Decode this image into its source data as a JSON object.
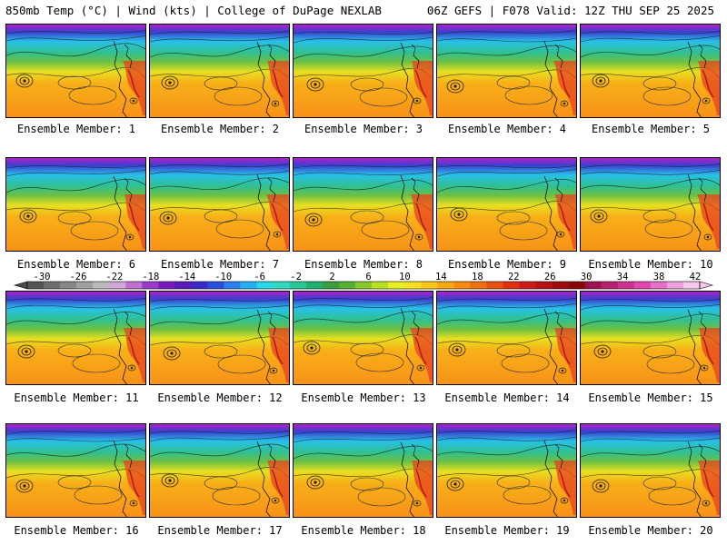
{
  "header": {
    "left": "850mb Temp (°C) | Wind (kts) | College of DuPage NEXLAB",
    "right": "06Z GEFS | F078 Valid: 12Z THU SEP 25 2025"
  },
  "panels": [
    {
      "label": "Ensemble Member: 1"
    },
    {
      "label": "Ensemble Member: 2"
    },
    {
      "label": "Ensemble Member: 3"
    },
    {
      "label": "Ensemble Member: 4"
    },
    {
      "label": "Ensemble Member: 5"
    },
    {
      "label": "Ensemble Member: 6"
    },
    {
      "label": "Ensemble Member: 7"
    },
    {
      "label": "Ensemble Member: 8"
    },
    {
      "label": "Ensemble Member: 9"
    },
    {
      "label": "Ensemble Member: 10"
    },
    {
      "label": "Ensemble Member: 11"
    },
    {
      "label": "Ensemble Member: 12"
    },
    {
      "label": "Ensemble Member: 13"
    },
    {
      "label": "Ensemble Member: 14"
    },
    {
      "label": "Ensemble Member: 15"
    },
    {
      "label": "Ensemble Member: 16"
    },
    {
      "label": "Ensemble Member: 17"
    },
    {
      "label": "Ensemble Member: 18"
    },
    {
      "label": "Ensemble Member: 19"
    },
    {
      "label": "Ensemble Member: 20"
    }
  ],
  "colorbar": {
    "tick_labels": [
      "-30",
      "-26",
      "-22",
      "-18",
      "-14",
      "-10",
      "-6",
      "-2",
      "2",
      "6",
      "10",
      "14",
      "18",
      "22",
      "26",
      "30",
      "34",
      "38",
      "42"
    ],
    "colors": [
      "#555555",
      "#6e6e6e",
      "#878787",
      "#a0a0a0",
      "#b9b9b9",
      "#d2a8d8",
      "#c070d0",
      "#9a3ac8",
      "#7a1ac0",
      "#5a1ab8",
      "#3a2ac8",
      "#2a4ee0",
      "#2a80ee",
      "#24b0f0",
      "#28d8e8",
      "#30d8c0",
      "#2ac898",
      "#20b070",
      "#38a040",
      "#58b030",
      "#88c828",
      "#b8e020",
      "#e8f020",
      "#f8e020",
      "#f8c818",
      "#f8a810",
      "#f88a10",
      "#f07010",
      "#e85010",
      "#e03010",
      "#d01818",
      "#b81010",
      "#a00c0c",
      "#880808",
      "#a01050",
      "#b8206e",
      "#d03090",
      "#e048b0",
      "#e870c8",
      "#f0a0e0",
      "#f8c8f0"
    ]
  }
}
